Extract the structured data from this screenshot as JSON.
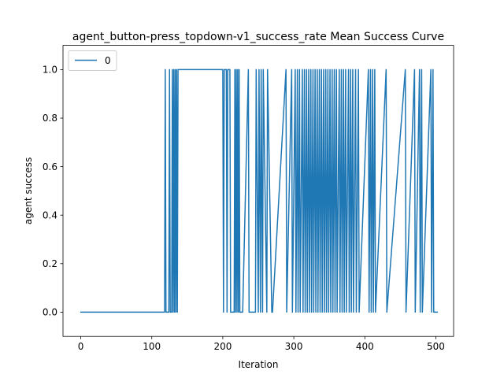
{
  "chart_data": {
    "type": "line",
    "title": "agent_button-press_topdown-v1_success_rate Mean Success Curve",
    "xlabel": "Iteration",
    "ylabel": "agent success",
    "xlim": [
      -25,
      525
    ],
    "ylim": [
      -0.1,
      1.1
    ],
    "xticks": [
      0,
      100,
      200,
      300,
      400,
      500
    ],
    "yticks": [
      0.0,
      0.2,
      0.4,
      0.6,
      0.8,
      1.0
    ],
    "xtick_labels": [
      "0",
      "100",
      "200",
      "300",
      "400",
      "500"
    ],
    "ytick_labels": [
      "0.0",
      "0.2",
      "0.4",
      "0.6",
      "0.8",
      "1.0"
    ],
    "grid": false,
    "legend": {
      "position": "upper-left"
    },
    "color": "#1f77b4",
    "series": [
      {
        "name": "0",
        "x": [
          0,
          118,
          119,
          120,
          124,
          125,
          126,
          128,
          129,
          130,
          131,
          132,
          133,
          134,
          135,
          136,
          137,
          200,
          201,
          202,
          205,
          206,
          207,
          208,
          209,
          210,
          211,
          216,
          217,
          218,
          219,
          220,
          221,
          222,
          223,
          224,
          227,
          228,
          236,
          237,
          246,
          247,
          250,
          251,
          253,
          254,
          256,
          257,
          262,
          263,
          269,
          270,
          289,
          290,
          297,
          298,
          302,
          303,
          305,
          306,
          308,
          309,
          312,
          313,
          315,
          316,
          318,
          319,
          321,
          322,
          324,
          325,
          327,
          328,
          330,
          331,
          333,
          334,
          336,
          337,
          339,
          340,
          342,
          343,
          345,
          346,
          348,
          349,
          351,
          352,
          354,
          355,
          357,
          358,
          360,
          361,
          364,
          365,
          367,
          368,
          370,
          371,
          373,
          374,
          377,
          378,
          380,
          381,
          383,
          384,
          387,
          388,
          391,
          392,
          405,
          406,
          408,
          409,
          411,
          412,
          414,
          415,
          430,
          431,
          457,
          458,
          470,
          471,
          477,
          478,
          480,
          481,
          493,
          494,
          496,
          497,
          502
        ],
        "y": [
          0,
          0,
          1,
          0,
          0,
          1,
          0,
          0,
          1,
          0,
          1,
          0,
          1,
          0,
          1,
          0,
          1,
          1,
          0,
          1,
          1,
          0,
          1,
          1,
          1,
          1,
          0,
          0,
          1,
          0,
          1,
          0,
          1,
          0,
          1,
          0,
          0,
          0,
          1,
          0,
          0,
          1,
          0,
          1,
          0,
          1,
          0,
          1,
          0,
          1,
          0,
          0,
          1,
          0,
          1,
          0,
          1,
          0,
          1,
          0,
          1,
          0,
          1,
          0,
          1,
          0,
          1,
          0,
          1,
          0,
          1,
          0,
          1,
          0,
          1,
          0,
          1,
          0,
          1,
          0,
          1,
          0,
          1,
          0,
          1,
          0,
          1,
          0,
          1,
          0,
          1,
          0,
          1,
          0,
          1,
          0,
          1,
          0,
          1,
          0,
          1,
          0,
          1,
          0,
          1,
          0,
          1,
          0,
          1,
          0,
          1,
          0,
          1,
          0,
          1,
          0,
          1,
          0,
          1,
          0,
          1,
          0,
          1,
          0,
          1,
          0,
          1,
          0,
          1,
          0,
          1,
          0,
          1,
          0,
          1,
          0,
          0
        ]
      }
    ]
  }
}
